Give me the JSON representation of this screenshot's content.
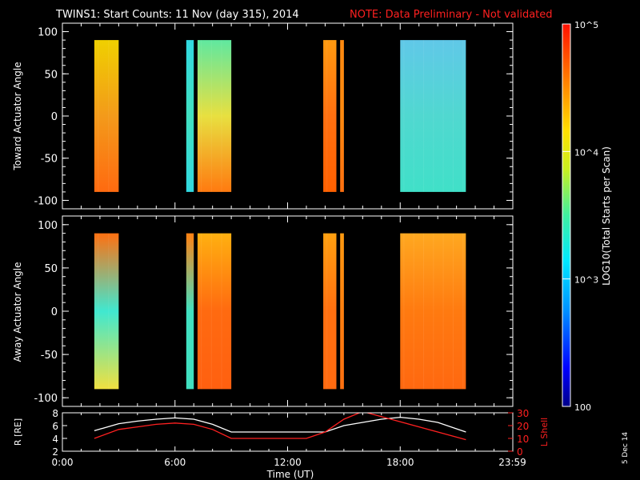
{
  "title": "TWINS1: Start Counts: 11 Nov (day 315), 2014",
  "note": "NOTE: Data Preliminary - Not validated",
  "colors": {
    "background": "#000000",
    "axes": "#ffffff",
    "note": "#ff2020",
    "ephem_r": "#ffffff",
    "ephem_l": "#ff2020"
  },
  "chart_data": [
    {
      "type": "heatmap",
      "ylabel": "Toward Actuator Angle",
      "ylim": [
        -110,
        110
      ],
      "yticks": [
        "100",
        "50",
        "0",
        "-50",
        "-100"
      ],
      "yticks_values": [
        100,
        50,
        0,
        -50,
        -100
      ],
      "xlim": [
        0,
        24
      ],
      "angle_range": [
        -90,
        90
      ],
      "data_blocks": [
        {
          "start": 1.7,
          "end": 3.0,
          "base": "#f39a1a",
          "upper": "#f0d000",
          "lower": "#ff6a10"
        },
        {
          "start": 6.6,
          "end": 7.0,
          "base": "#40e0c0",
          "upper": "#30d8e0",
          "lower": "#30d8e0"
        },
        {
          "start": 7.2,
          "end": 9.0,
          "base": "#e8e040",
          "upper": "#60e8a0",
          "lower": "#ff7a10"
        },
        {
          "start": 13.9,
          "end": 14.6,
          "base": "#ff7010",
          "upper": "#ff9a10",
          "lower": "#ff6000"
        },
        {
          "start": 14.8,
          "end": 15.0,
          "base": "#ff8a10",
          "upper": "#ff8a10",
          "lower": "#ff7010"
        },
        {
          "start": 18.0,
          "end": 21.5,
          "base": "#50d8d0",
          "upper": "#60c8e8",
          "lower": "#40e0c8"
        }
      ]
    },
    {
      "type": "heatmap",
      "ylabel": "Away Actuator Angle",
      "ylim": [
        -110,
        110
      ],
      "yticks": [
        "100",
        "50",
        "0",
        "-50",
        "-100"
      ],
      "yticks_values": [
        100,
        50,
        0,
        -50,
        -100
      ],
      "xlim": [
        0,
        24
      ],
      "angle_range": [
        -90,
        90
      ],
      "data_blocks": [
        {
          "start": 1.7,
          "end": 3.0,
          "base": "#40e8d0",
          "upper": "#ff7010",
          "lower": "#f0e040"
        },
        {
          "start": 6.6,
          "end": 7.0,
          "base": "#40e0c0",
          "upper": "#ff8010",
          "lower": "#40e0c0"
        },
        {
          "start": 7.2,
          "end": 9.0,
          "base": "#ff6a10",
          "upper": "#ffb010",
          "lower": "#ff6010"
        },
        {
          "start": 13.9,
          "end": 14.6,
          "base": "#ff7010",
          "upper": "#ffa010",
          "lower": "#ff6a10"
        },
        {
          "start": 14.8,
          "end": 15.0,
          "base": "#ff8010",
          "upper": "#ff9a10",
          "lower": "#ff7010"
        },
        {
          "start": 18.0,
          "end": 21.5,
          "base": "#ff7a10",
          "upper": "#ffa820",
          "lower": "#ff6810"
        }
      ]
    },
    {
      "type": "line",
      "ylabel": "R [RE]",
      "ylabel_right": "L Shell",
      "ylim": [
        2,
        8
      ],
      "yticks": [
        "8",
        "6",
        "4",
        "2"
      ],
      "yticks_values": [
        8,
        6,
        4,
        2
      ],
      "ylim_right": [
        0,
        30
      ],
      "yticks_right": [
        "30",
        "20",
        "10",
        "0"
      ],
      "yticks_right_values": [
        30,
        20,
        10,
        0
      ],
      "xlim": [
        0,
        24
      ],
      "xticks": [
        "0:00",
        "6:00",
        "12:00",
        "18:00",
        "23:59"
      ],
      "xticks_values": [
        0,
        6,
        12,
        18,
        23.98
      ],
      "xlabel": "Time (UT)",
      "series": [
        {
          "axis": "left",
          "color": "#ffffff",
          "x": [
            1.7,
            3,
            4,
            5,
            6,
            7,
            8,
            9,
            10,
            11,
            12,
            13,
            14,
            15,
            16,
            17,
            18,
            19,
            20,
            21,
            21.5
          ],
          "y": [
            5.2,
            6.3,
            6.7,
            7.0,
            7.2,
            7.0,
            6.2,
            5.0,
            5.0,
            5.0,
            5.0,
            5.0,
            5.0,
            6.0,
            6.5,
            7.0,
            7.3,
            7.0,
            6.5,
            5.5,
            5.0
          ]
        },
        {
          "axis": "right",
          "color": "#ff2020",
          "x": [
            1.7,
            3,
            4,
            5,
            6,
            7,
            8,
            9,
            10,
            11,
            12,
            13,
            14,
            15,
            16,
            21,
            21.5
          ],
          "y": [
            10,
            17,
            19,
            21,
            22,
            21,
            17,
            10,
            10,
            10,
            10,
            10,
            15,
            25,
            31,
            11,
            9
          ]
        }
      ]
    }
  ],
  "colorbar": {
    "label": "LOG10(Total Starts per Scan)",
    "ticks": [
      "10^5",
      "10^4",
      "10^3",
      "100"
    ],
    "ticks_values": [
      100000,
      10000,
      1000,
      100
    ]
  },
  "datestamp": "5 Dec 14"
}
